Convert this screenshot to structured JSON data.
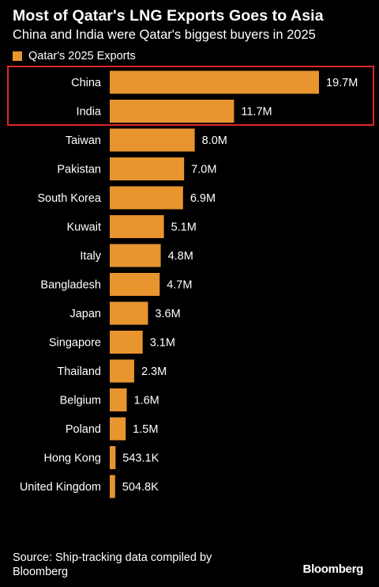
{
  "title": "Most of Qatar's LNG Exports Goes to Asia",
  "subtitle": "China and India were Qatar's biggest buyers in 2025",
  "legend": {
    "label": "Qatar's 2025 Exports",
    "color": "#e8952f"
  },
  "source": "Source: Ship-tracking data compiled by Bloomberg",
  "brand": "Bloomberg",
  "colors": {
    "bar": "#e8952f",
    "highlight": "#e0262b",
    "background": "#000000"
  },
  "chart_data": {
    "type": "bar",
    "orientation": "horizontal",
    "categories": [
      "China",
      "India",
      "Taiwan",
      "Pakistan",
      "South Korea",
      "Kuwait",
      "Italy",
      "Bangladesh",
      "Japan",
      "Singapore",
      "Thailand",
      "Belgium",
      "Poland",
      "Hong Kong",
      "United Kingdom"
    ],
    "series": [
      {
        "name": "Qatar's 2025 Exports",
        "values": [
          19.7,
          11.7,
          8.0,
          7.0,
          6.9,
          5.1,
          4.8,
          4.7,
          3.6,
          3.1,
          2.3,
          1.6,
          1.5,
          0.5431,
          0.5048
        ]
      }
    ],
    "value_labels": [
      "19.7M",
      "11.7M",
      "8.0M",
      "7.0M",
      "6.9M",
      "5.1M",
      "4.8M",
      "4.7M",
      "3.6M",
      "3.1M",
      "2.3M",
      "1.6M",
      "1.5M",
      "543.1K",
      "504.8K"
    ],
    "xlim": [
      0,
      19.7
    ],
    "grid": false,
    "legend_position": "top-left",
    "highlighted_categories": [
      "China",
      "India"
    ]
  }
}
